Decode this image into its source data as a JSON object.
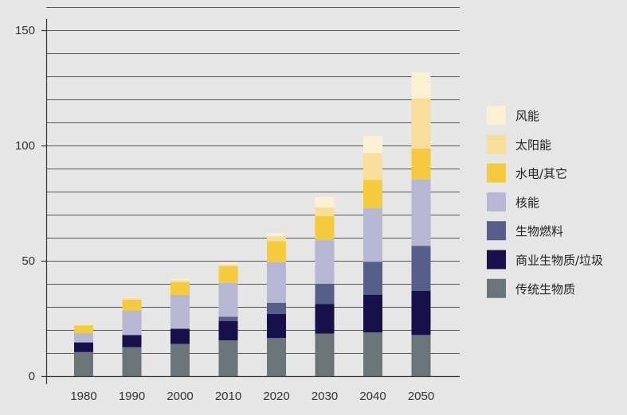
{
  "chart_data": {
    "type": "bar",
    "stacked": true,
    "categories": [
      "1980",
      "1990",
      "2000",
      "2010",
      "2020",
      "2030",
      "2040",
      "2050"
    ],
    "series": [
      {
        "name": "传统生物质",
        "color": "#6b7479",
        "values": [
          10.4,
          12.5,
          13.9,
          15.5,
          16.5,
          18.4,
          18.9,
          17.8
        ]
      },
      {
        "name": "商业生物质/垃圾",
        "color": "#17104a",
        "values": [
          4.2,
          5.3,
          6.6,
          8.3,
          10.5,
          12.8,
          16.4,
          19.1
        ]
      },
      {
        "name": "生物燃料",
        "color": "#565f8a",
        "values": [
          0,
          0,
          0,
          1.9,
          4.8,
          8.8,
          14.3,
          19.6
        ]
      },
      {
        "name": "核能",
        "color": "#b7b7d4",
        "values": [
          4.1,
          10.6,
          14.7,
          14.7,
          17.6,
          19.1,
          23.2,
          28.8
        ]
      },
      {
        "name": "水电/其它",
        "color": "#f3cb3c",
        "values": [
          3.2,
          4.7,
          5.5,
          7.2,
          9.1,
          10.3,
          12.3,
          13.4
        ]
      },
      {
        "name": "太阳能",
        "color": "#f7df99",
        "values": [
          0.4,
          0.7,
          0.9,
          0.8,
          2.2,
          3.8,
          11.6,
          21.7
        ]
      },
      {
        "name": "风能",
        "color": "#fbf0d4",
        "values": [
          0.2,
          0.4,
          0.7,
          0.8,
          1.3,
          4.5,
          7.5,
          11.4
        ]
      }
    ],
    "yticks": [
      0,
      50,
      100,
      150
    ],
    "ylim": [
      0,
      160
    ],
    "grid": true,
    "legend": "right"
  }
}
